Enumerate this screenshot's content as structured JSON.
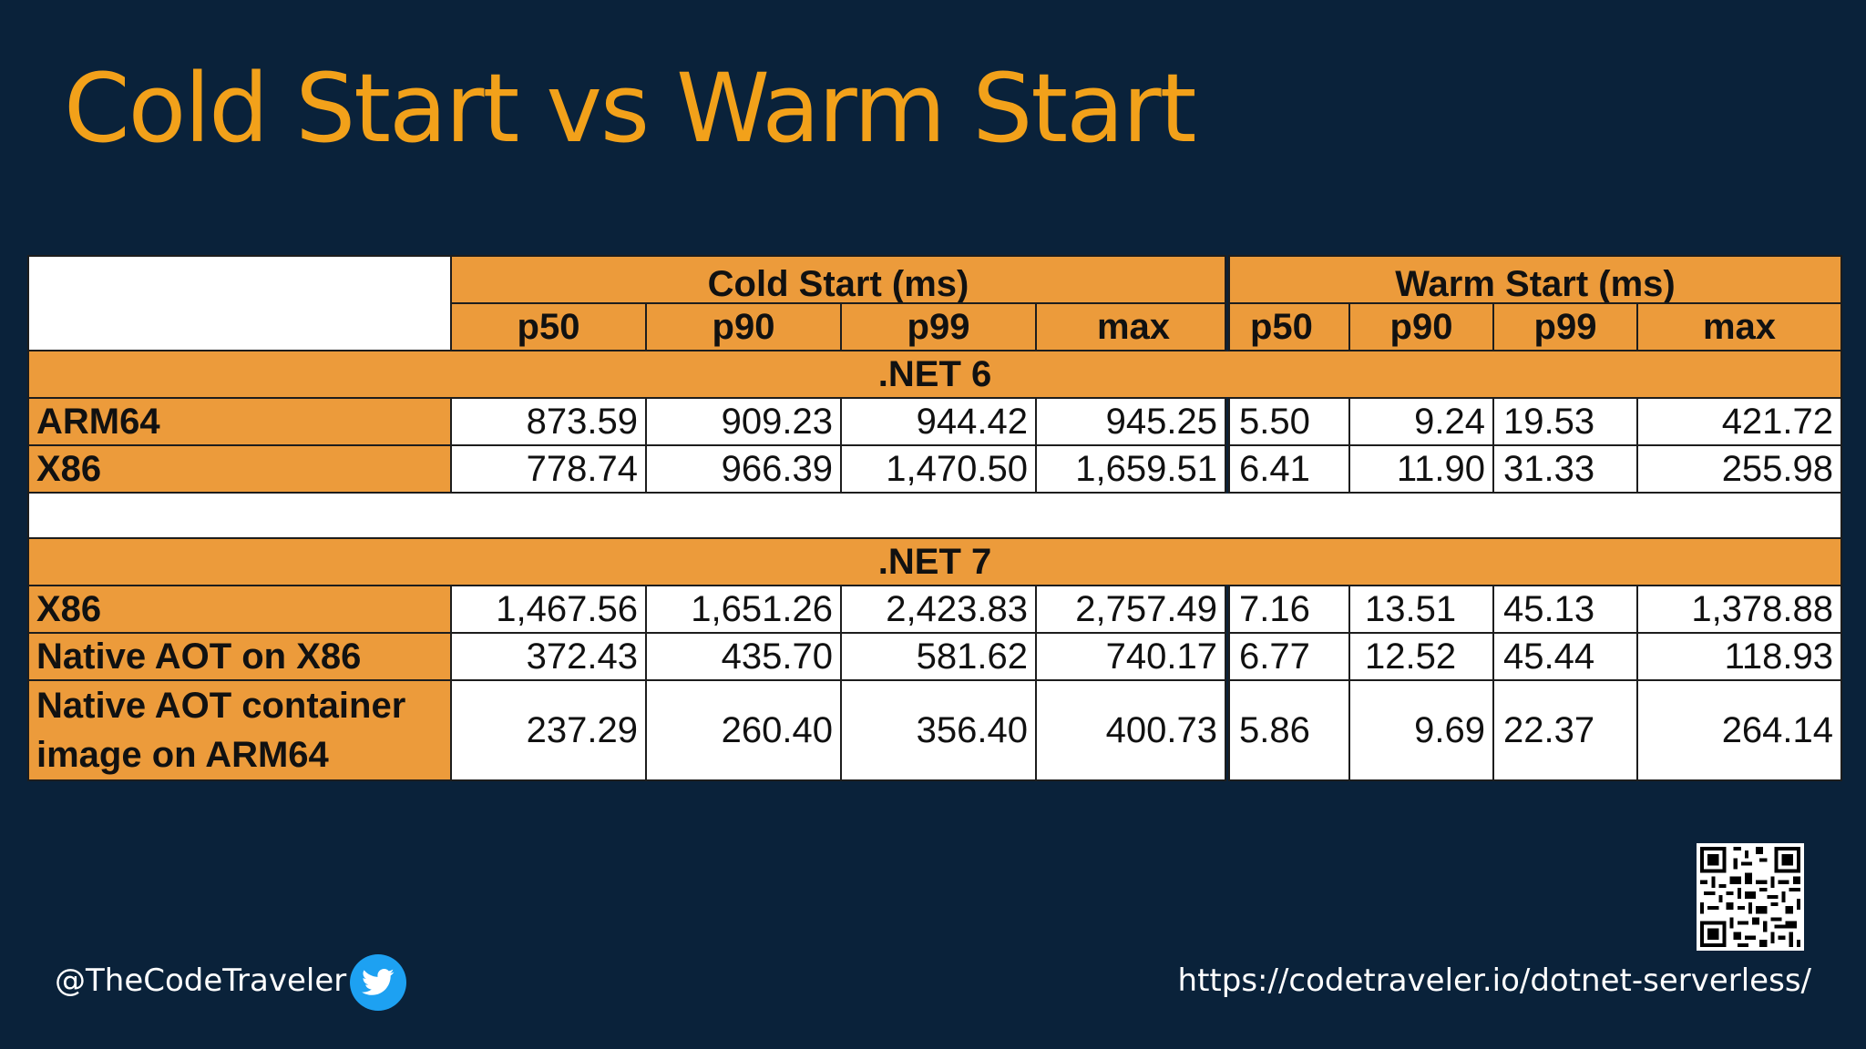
{
  "title": "Cold Start vs Warm Start",
  "table": {
    "group_headers": [
      "Cold Start (ms)",
      "Warm Start (ms)"
    ],
    "columns": [
      "p50",
      "p90",
      "p99",
      "max",
      "p50",
      "p90",
      "p99",
      "max"
    ],
    "sections": [
      {
        "name": ".NET 6",
        "rows": [
          {
            "label": "ARM64",
            "values": [
              "873.59",
              "909.23",
              "944.42",
              "945.25",
              "5.50",
              "9.24",
              "19.53",
              "421.72"
            ]
          },
          {
            "label": "X86",
            "values": [
              "778.74",
              "966.39",
              "1,470.50",
              "1,659.51",
              "6.41",
              "11.90",
              "31.33",
              "255.98"
            ]
          }
        ]
      },
      {
        "name": ".NET 7",
        "rows": [
          {
            "label": "X86",
            "values": [
              "1,467.56",
              "1,651.26",
              "2,423.83",
              "2,757.49",
              "7.16",
              "13.51",
              "45.13",
              "1,378.88"
            ]
          },
          {
            "label": "Native AOT on X86",
            "values": [
              "372.43",
              "435.70",
              "581.62",
              "740.17",
              "6.77",
              "12.52",
              "45.44",
              "118.93"
            ]
          },
          {
            "label": "Native AOT container image on ARM64",
            "values": [
              "237.29",
              "260.40",
              "356.40",
              "400.73",
              "5.86",
              "9.69",
              "22.37",
              "264.14"
            ]
          }
        ]
      }
    ]
  },
  "footer": {
    "handle": "@TheCodeTraveler",
    "url": "https://codetraveler.io/dotnet-serverless/",
    "twitter_icon": "twitter-bird-icon",
    "qr_icon": "qr-code-icon"
  },
  "colors": {
    "background": "#0a223a",
    "title": "#f2a11a",
    "table_orange": "#ec9b3b",
    "twitter_blue": "#1da1f2"
  }
}
